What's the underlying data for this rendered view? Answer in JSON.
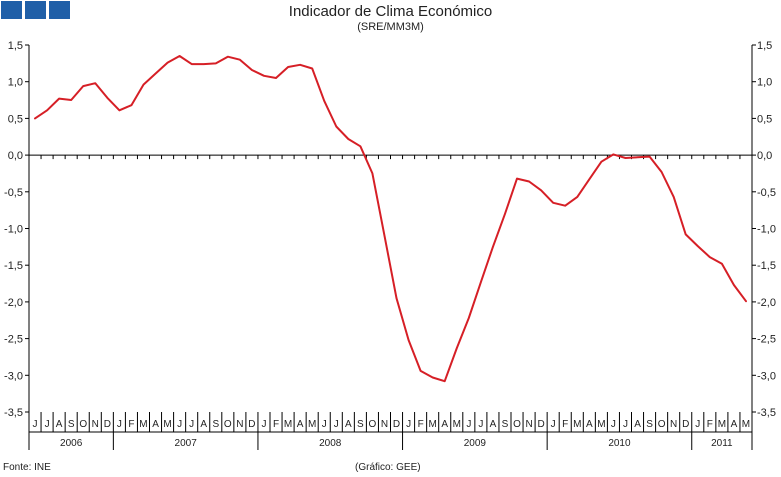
{
  "header": {
    "title": "Indicador de Clima Económico",
    "subtitle": "(SRE/MM3M)"
  },
  "footer": {
    "source": "Fonte: INE",
    "credit": "(Gráfico: GEE)"
  },
  "chart_data": {
    "type": "line",
    "title": "Indicador de Clima Económico",
    "subtitle": "(SRE/MM3M)",
    "xlabel": "",
    "ylabel": "",
    "ylim": [
      -3.5,
      1.5
    ],
    "yticks": [
      1.5,
      1.0,
      0.5,
      0.0,
      -0.5,
      -1.0,
      -1.5,
      -2.0,
      -2.5,
      -3.0,
      -3.5
    ],
    "ytick_labels": [
      "1,5",
      "1,0",
      "0,5",
      "0,0",
      "-0,5",
      "-1,0",
      "-1,5",
      "-2,0",
      "-2,5",
      "-3,0",
      "-3,5"
    ],
    "month_labels": [
      "J",
      "J",
      "A",
      "S",
      "O",
      "N",
      "D",
      "J",
      "F",
      "M",
      "A",
      "M",
      "J",
      "J",
      "A",
      "S",
      "O",
      "N",
      "D",
      "J",
      "F",
      "M",
      "A",
      "M",
      "J",
      "J",
      "A",
      "S",
      "O",
      "N",
      "D",
      "J",
      "F",
      "M",
      "A",
      "M",
      "J",
      "J",
      "A",
      "S",
      "O",
      "N",
      "D",
      "J",
      "F",
      "M",
      "A",
      "M",
      "J",
      "J",
      "A",
      "S",
      "O",
      "N",
      "D",
      "J",
      "F",
      "M",
      "A",
      "M"
    ],
    "years": [
      {
        "label": "2006",
        "start": 0,
        "count": 7
      },
      {
        "label": "2007",
        "start": 7,
        "count": 12
      },
      {
        "label": "2008",
        "start": 19,
        "count": 12
      },
      {
        "label": "2009",
        "start": 31,
        "count": 12
      },
      {
        "label": "2010",
        "start": 43,
        "count": 12
      },
      {
        "label": "2011",
        "start": 55,
        "count": 5
      }
    ],
    "grid": false,
    "line_color": "#d61f26",
    "series": [
      {
        "values": [
          0.5,
          0.61,
          0.77,
          0.75,
          0.94,
          0.98,
          0.78,
          0.61,
          0.68,
          0.96,
          1.11,
          1.26,
          1.35,
          1.24,
          1.24,
          1.25,
          1.34,
          1.3,
          1.16,
          1.08,
          1.05,
          1.2,
          1.23,
          1.18,
          0.74,
          0.39,
          0.22,
          0.12,
          -0.25,
          -1.1,
          -1.95,
          -2.52,
          -2.94,
          -3.03,
          -3.08,
          -2.63,
          -2.22,
          -1.73,
          -1.25,
          -0.8,
          -0.32,
          -0.36,
          -0.48,
          -0.65,
          -0.69,
          -0.57,
          -0.33,
          -0.09,
          0.01,
          -0.04,
          -0.03,
          -0.02,
          -0.23,
          -0.57,
          -1.08,
          -1.24,
          -1.39,
          -1.48,
          -1.77,
          -1.99
        ]
      }
    ]
  }
}
